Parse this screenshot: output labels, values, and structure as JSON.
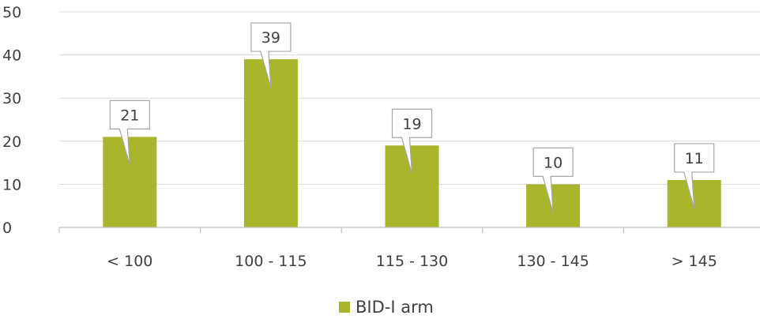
{
  "chart_data": {
    "type": "bar",
    "title": "",
    "xlabel": "",
    "ylabel": "",
    "categories": [
      "< 100",
      "100 - 115",
      "115 - 130",
      "130 - 145",
      "> 145"
    ],
    "series": [
      {
        "name": "BID-I arm",
        "values": [
          21,
          39,
          19,
          10,
          11
        ],
        "color": "#a9b52a"
      }
    ],
    "data_labels": [
      "21",
      "39",
      "19",
      "10",
      "11"
    ],
    "ylim": [
      0,
      50
    ],
    "yticks": [
      "0",
      "10",
      "20",
      "30",
      "40",
      "50"
    ],
    "grid": true,
    "legend": {
      "position": "bottom",
      "label": "BID-I arm"
    }
  }
}
